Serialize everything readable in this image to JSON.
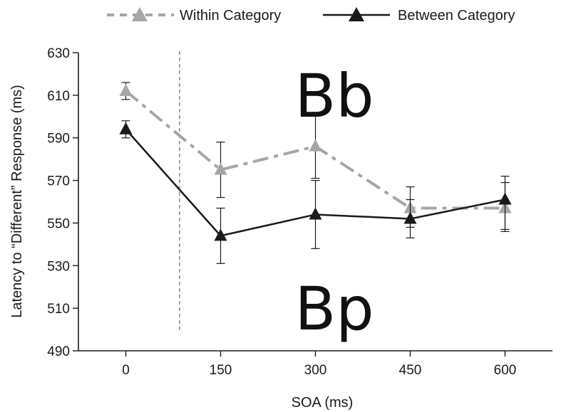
{
  "chart_data": {
    "type": "line",
    "title": "",
    "xlabel": "SOA (ms)",
    "ylabel": "Latency to “Different” Response (ms)",
    "x": [
      0,
      150,
      300,
      450,
      600
    ],
    "x_tick_labels": [
      "0",
      "150",
      "300",
      "450",
      "600"
    ],
    "xlim": [
      -75,
      675
    ],
    "ylim": [
      490,
      630
    ],
    "y_ticks": [
      490,
      510,
      530,
      550,
      570,
      590,
      610,
      630
    ],
    "grid": false,
    "legend_position": "top",
    "series": [
      {
        "name": "Within Category",
        "values": [
          612,
          575,
          586,
          557,
          557
        ],
        "error_low": [
          608,
          562,
          571,
          548,
          547
        ],
        "error_high": [
          616,
          588,
          602,
          567,
          569
        ],
        "color": "#a6a6a6",
        "line_style": "dash-dot",
        "marker": "triangle"
      },
      {
        "name": "Between Category",
        "values": [
          594,
          544,
          554,
          552,
          561
        ],
        "error_low": [
          590,
          531,
          538,
          543,
          546
        ],
        "error_high": [
          598,
          557,
          570,
          561,
          572
        ],
        "color": "#1a1a1a",
        "line_style": "solid",
        "marker": "triangle"
      }
    ],
    "reference_line": {
      "x": 85,
      "style": "dashed",
      "color": "#8c8c8c"
    },
    "annotations": [
      {
        "text": "Bb",
        "x": 330,
        "y": 610
      },
      {
        "text": "Bp",
        "x": 330,
        "y": 510
      }
    ]
  }
}
